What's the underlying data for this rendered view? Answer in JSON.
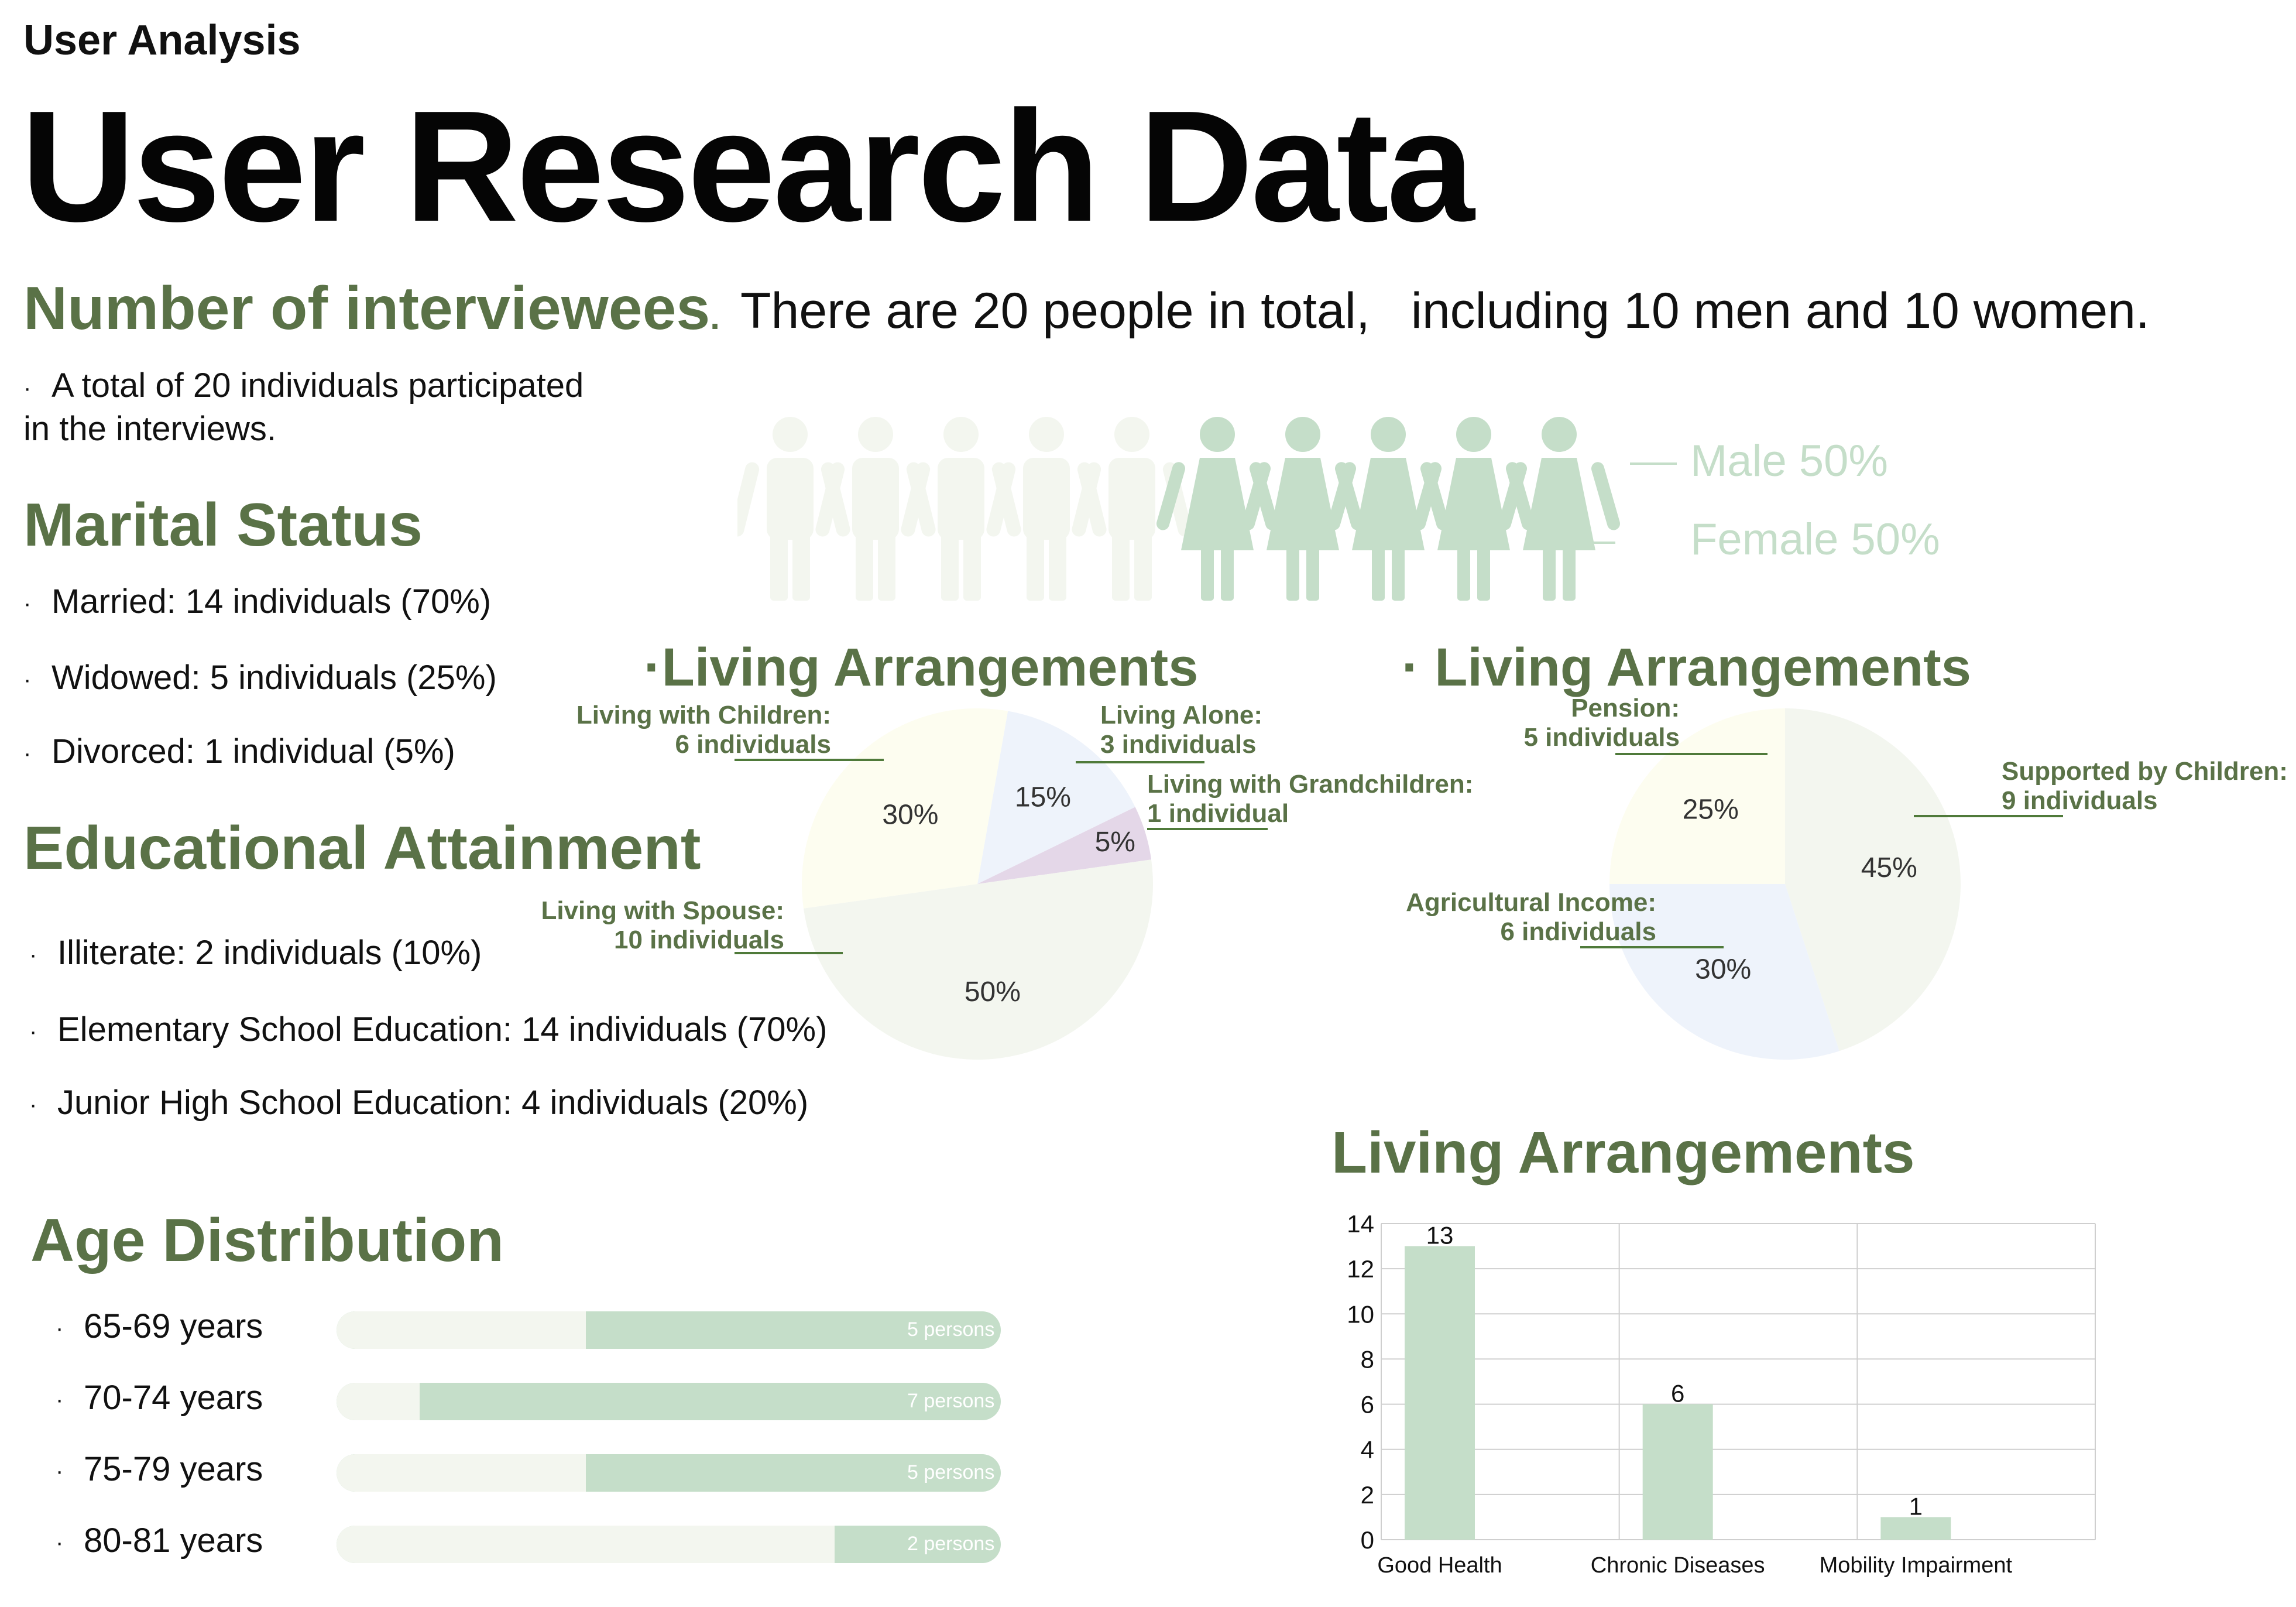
{
  "header": {
    "kicker": "User Analysis",
    "title": "User Research Data"
  },
  "interviewees": {
    "heading": "Number of interviewees",
    "heading_dot": ".",
    "summary_a": "There are 20 people in total,",
    "summary_b": "including 10 men and 10 women.",
    "note_line1": "A total of 20 individuals participated",
    "note_line2": "in the interviews.",
    "male_label": "Male 50%",
    "female_label": "Female 50%",
    "male_count": 5,
    "female_count": 5,
    "male_color": "#f3f6ef",
    "female_color": "#c5dec9"
  },
  "marital": {
    "heading": "Marital Status",
    "items": [
      "Married: 14 individuals (70%)",
      "Widowed: 5 individuals (25%)",
      "Divorced: 1 individual (5%)"
    ]
  },
  "education": {
    "heading": "Educational Attainment",
    "items": [
      "Illiterate: 2 individuals (10%)",
      "Elementary School Education: 14 individuals (70%)",
      "Junior High School Education: 4 individuals (20%)"
    ]
  },
  "age": {
    "heading": "Age Distribution",
    "rows": [
      {
        "label": "65-69 years",
        "persons": 5,
        "text": "5 persons"
      },
      {
        "label": "70-74 years",
        "persons": 7,
        "text": "7 persons"
      },
      {
        "label": "75-79 years",
        "persons": 5,
        "text": "5 persons"
      },
      {
        "label": "80-81 years",
        "persons": 2,
        "text": "2 persons"
      }
    ],
    "max_persons": 8
  },
  "bullet_glyph": "·",
  "chart_data": [
    {
      "type": "pie",
      "title": "Living Arrangements",
      "slices": [
        {
          "label": "Living Alone:",
          "sublabel": "3 individuals",
          "value": 15,
          "pct": "15%",
          "color": "#eef3fb"
        },
        {
          "label": "Living with Grandchildren:",
          "sublabel": "1 individual",
          "value": 5,
          "pct": "5%",
          "color": "#e4d7e8"
        },
        {
          "label": "Living with Spouse:",
          "sublabel": "10 individuals",
          "value": 50,
          "pct": "50%",
          "color": "#f3f6ef"
        },
        {
          "label": "Living with Children:",
          "sublabel": "6 individuals",
          "value": 30,
          "pct": "30%",
          "color": "#fdfdf0"
        }
      ]
    },
    {
      "type": "pie",
      "title": "Living Arrangements",
      "slices": [
        {
          "label": "Supported by Children:",
          "sublabel": "9 individuals",
          "value": 45,
          "pct": "45%",
          "color": "#f3f6ef"
        },
        {
          "label": "Agricultural Income:",
          "sublabel": "6 individuals",
          "value": 30,
          "pct": "30%",
          "color": "#eef3fb"
        },
        {
          "label": "Pension:",
          "sublabel": "5 individuals",
          "value": 25,
          "pct": "25%",
          "color": "#fdfdf0"
        }
      ]
    },
    {
      "type": "bar",
      "title": "Living Arrangements",
      "categories": [
        "Good Health",
        "Chronic Diseases",
        "Mobility Impairment"
      ],
      "values": [
        13,
        6,
        1
      ],
      "ylim": [
        0,
        14
      ],
      "yticks": [
        0,
        2,
        4,
        6,
        8,
        10,
        12,
        14
      ],
      "grid": true,
      "bar_color": "#c5dec9"
    }
  ]
}
